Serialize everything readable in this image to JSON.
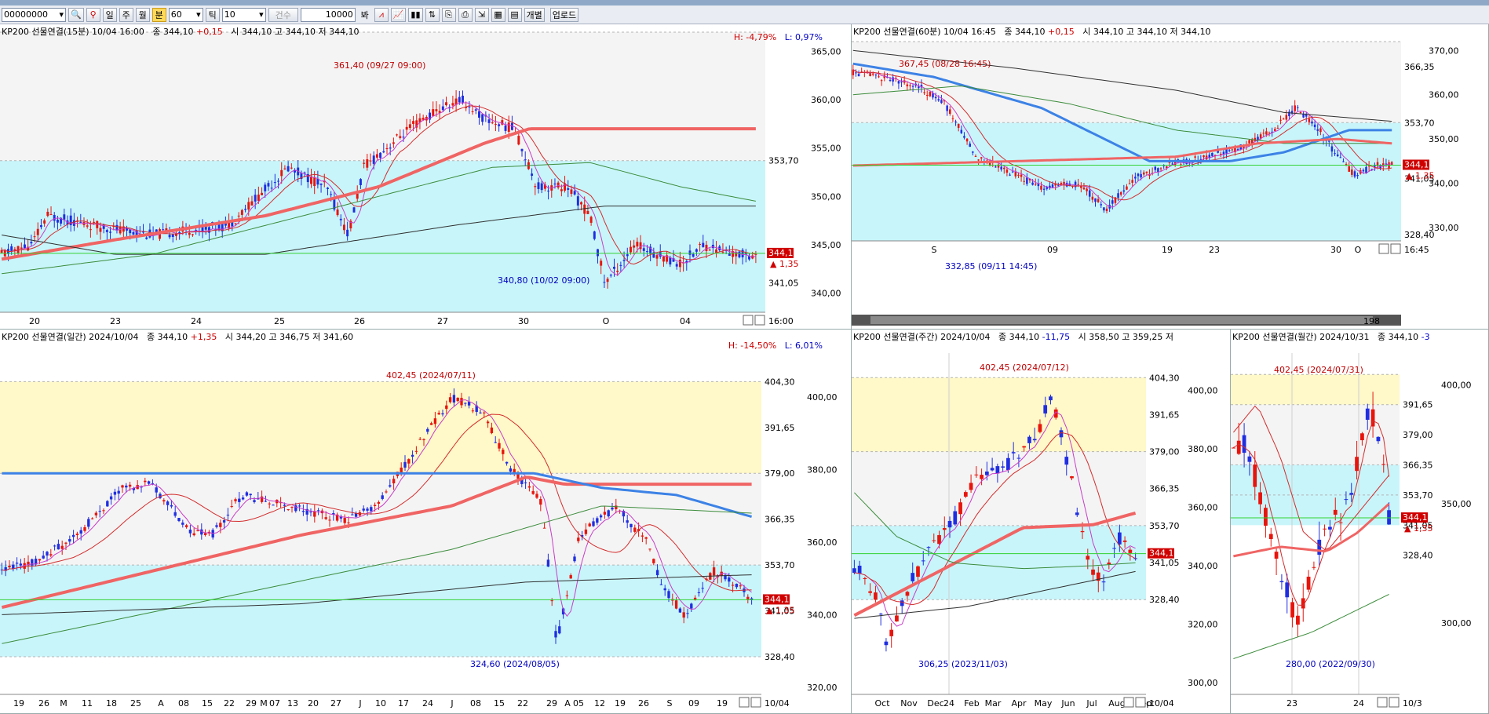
{
  "toolbar": {
    "code_value": "00000000",
    "period_buttons": [
      "일",
      "주",
      "월",
      "분"
    ],
    "period_active": "분",
    "minute_value": "60",
    "tick_label": "틱",
    "tick_value": "10",
    "count_label": "건수",
    "count_value": "10000",
    "count_unit": "봐",
    "individual_label": "개별",
    "upload_label": "업로드"
  },
  "colors": {
    "up": "#e8140c",
    "down": "#1f2ee0",
    "ma5": "#c83cc8",
    "ma20": "#d42c2c",
    "ma60": "#f06464",
    "ma120": "#3c82e6",
    "ma200": "#3c8c3c",
    "ma480": "#303030",
    "hline": "#32d232",
    "cyan_zone": "#c8f5fa",
    "yellow_zone": "#fff8c8",
    "gray_zone": "#f4f4f4"
  },
  "panels": {
    "m15": {
      "title": "KP200 선물연결(15분) 10/04 16:00",
      "close": "종 344,10",
      "change": "+0,15",
      "ohlc": "시 344,10 고 344,10 저 344,10",
      "hl_h": "H: -4,79%",
      "hl_l": "L: 0,97%",
      "high_anno": "361,40 (09/27 09:00)",
      "low_anno": "340,80 (10/02 09:00)",
      "price_tag": "344,10",
      "price_delta": "▲ 1,35",
      "y_labels": [
        "365,00",
        "360,00",
        "355,00",
        "353,70",
        "350,00",
        "345,00",
        "341,05",
        "340,00"
      ],
      "x_labels": [
        "20",
        "23",
        "24",
        "25",
        "26",
        "27",
        "30",
        "O",
        "04"
      ],
      "corner_time": "16:00"
    },
    "m60": {
      "title": "KP200 선물연결(60분) 10/04 16:45",
      "close": "종 344,10",
      "change": "+0,15",
      "ohlc": "시 344,10 고 344,10 저 344,10",
      "high_anno": "367,45 (08/28 16:45)",
      "low_anno": "332,85 (09/11 14:45)",
      "price_tag": "344,10",
      "price_delta": "▲ 1,35",
      "y_labels": [
        "370,00",
        "366,35",
        "360,00",
        "353,70",
        "350,00",
        "341,05",
        "340,00",
        "330,00",
        "328,40"
      ],
      "x_labels": [
        "S",
        "09",
        "19",
        "23",
        "30",
        "O"
      ],
      "corner_time": "16:45",
      "scroll_value": "198"
    },
    "daily": {
      "title": "KP200 선물연결(일간) 2024/10/04",
      "close": "종 344,10",
      "change": "+1,35",
      "ohlc": "시 344,20 고 346,75 저 341,60",
      "hl_h": "H: -14,50%",
      "hl_l": "L: 6,01%",
      "high_anno": "402,45 (2024/07/11)",
      "low_anno": "324,60 (2024/08/05)",
      "price_tag": "344,10",
      "price_delta": "▲ 1,35",
      "y_labels": [
        "404,30",
        "400,00",
        "391,65",
        "380,00",
        "379,00",
        "366,35",
        "360,00",
        "353,70",
        "341,05",
        "340,00",
        "328,40",
        "320,00"
      ],
      "x_labels": [
        "19",
        "26",
        "M",
        "11",
        "18",
        "25",
        "A",
        "08",
        "15",
        "22",
        "29",
        "M",
        "07",
        "13",
        "20",
        "27",
        "J",
        "10",
        "17",
        "24",
        "J",
        "08",
        "15",
        "22",
        "29",
        "A",
        "05",
        "12",
        "19",
        "26",
        "S",
        "09",
        "19",
        "O"
      ],
      "corner_date": "10/04"
    },
    "weekly": {
      "title": "KP200 선물연결(주간) 2024/10/04",
      "close": "종 344,10",
      "change": "-11,75",
      "ohlc": "시 358,50 고 359,25 저",
      "high_anno": "402,45 (2024/07/12)",
      "low_anno": "306,25 (2023/11/03)",
      "price_tag": "344,10",
      "y_labels": [
        "404,30",
        "400,00",
        "391,65",
        "380,00",
        "379,00",
        "366,35",
        "360,00",
        "353,70",
        "341,05",
        "340,00",
        "328,40",
        "320,00",
        "300,00"
      ],
      "x_labels": [
        "Oct",
        "Nov",
        "Dec",
        "24",
        "Feb",
        "Mar",
        "Apr",
        "May",
        "Jun",
        "Jul",
        "Aug",
        "Sep",
        "Oct"
      ],
      "corner_date": "10/04"
    },
    "monthly": {
      "title": "KP200 선물연결(월간) 2024/10/31",
      "close": "종 344,10",
      "change": "-3",
      "high_anno": "402,45 (2024/07/31)",
      "low_anno": "280,00 (2022/09/30)",
      "price_tag": "344,10",
      "price_delta": "▲ 1,35",
      "y_labels": [
        "400,00",
        "391,65",
        "379,00",
        "366,35",
        "353,70",
        "350,00",
        "341,05",
        "328,40",
        "300,00"
      ],
      "x_labels": [
        "23",
        "24"
      ],
      "corner_date": "10/3"
    }
  }
}
